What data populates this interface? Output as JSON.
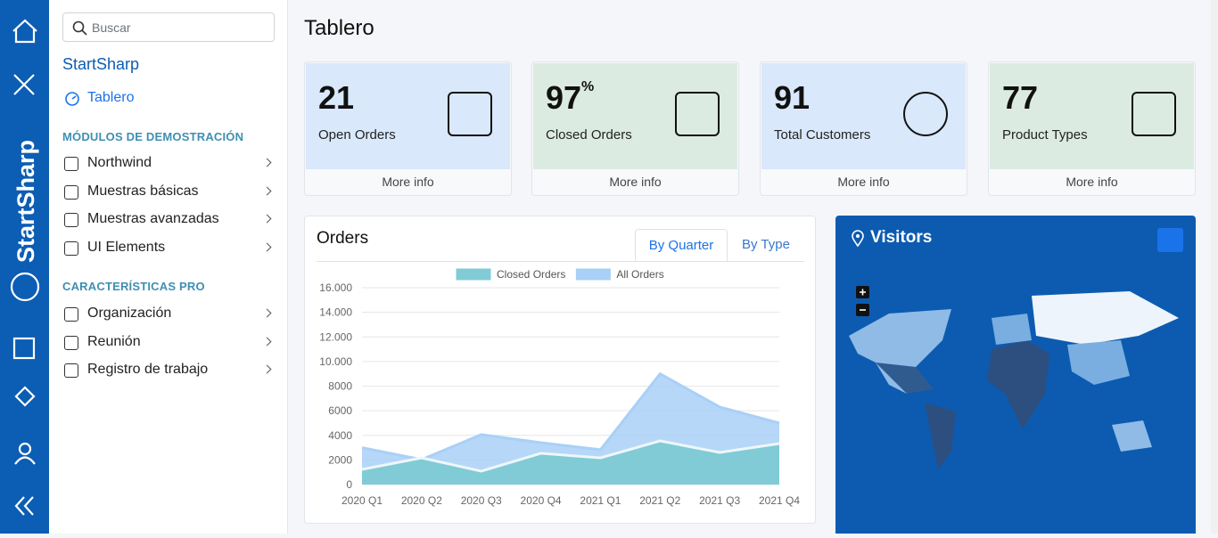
{
  "brand": "StartSharp",
  "sidebar": {
    "search_placeholder": "Buscar",
    "app_title": "StartSharp",
    "dashboard_link": "Tablero",
    "sections": [
      {
        "title": "MÓDULOS DE DEMOSTRACIÓN",
        "items": [
          "Northwind",
          "Muestras básicas",
          "Muestras avanzadas",
          "UI Elements"
        ]
      },
      {
        "title": "CARACTERÍSTICAS PRO",
        "items": [
          "Organización",
          "Reunión",
          "Registro de trabajo"
        ]
      }
    ]
  },
  "page_title": "Tablero",
  "stat_cards": [
    {
      "value": "21",
      "label": "Open Orders",
      "link": "More info"
    },
    {
      "value": "97",
      "unit": "%",
      "label": "Closed Orders",
      "link": "More info"
    },
    {
      "value": "91",
      "label": "Total Customers",
      "link": "More info"
    },
    {
      "value": "77",
      "label": "Product Types",
      "link": "More info"
    }
  ],
  "orders_panel": {
    "title": "Orders",
    "tabs": [
      "By Quarter",
      "By Type"
    ]
  },
  "visitors_panel": {
    "title": "Visitors"
  },
  "chart_data": {
    "type": "area",
    "categories": [
      "2020 Q1",
      "2020 Q2",
      "2020 Q3",
      "2020 Q4",
      "2021 Q1",
      "2021 Q2",
      "2021 Q3",
      "2021 Q4"
    ],
    "series": [
      {
        "name": "Closed Orders",
        "color": "#80cbd6",
        "values": [
          1230,
          2170,
          1090,
          2540,
          2170,
          3550,
          2610,
          3330
        ]
      },
      {
        "name": "All Orders",
        "color": "#a9d0f7",
        "values": [
          3000,
          2030,
          4060,
          3400,
          2830,
          9000,
          6300,
          5000
        ]
      }
    ],
    "ylim": [
      0,
      16000
    ],
    "yticks": [
      0,
      2000,
      4000,
      6000,
      8000,
      {
        "value": 10000,
        "label": "10.000"
      },
      {
        "value": 12000,
        "label": "12.000"
      },
      {
        "value": 14000,
        "label": "14.000"
      },
      {
        "value": 16000,
        "label": "16.000"
      }
    ],
    "grid": true
  }
}
